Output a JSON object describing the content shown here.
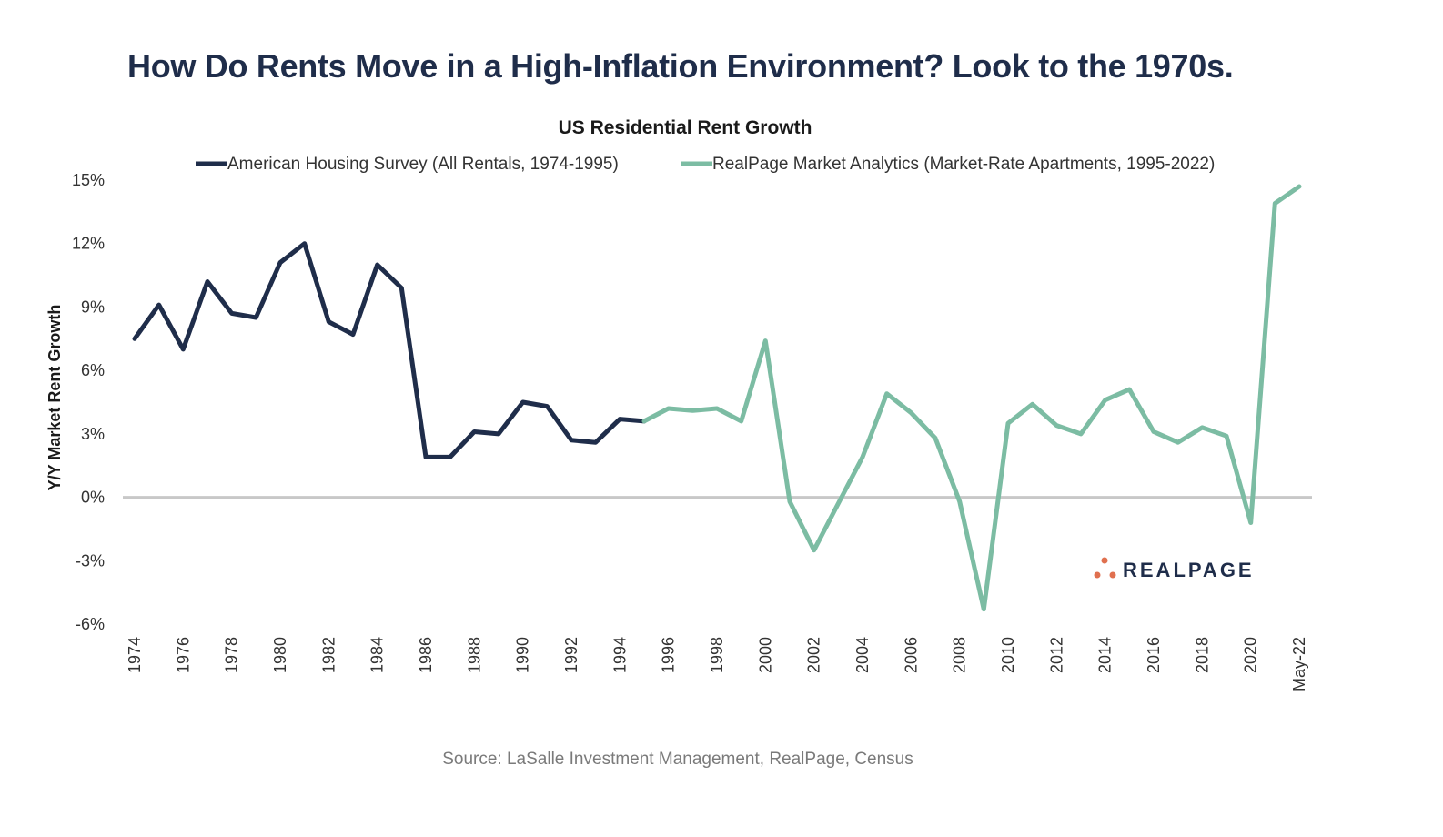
{
  "headline": "How Do Rents Move in a High-Inflation Environment? Look to the 1970s.",
  "source": "Source: LaSalle Investment Management, RealPage, Census",
  "logo": {
    "text": "REALPAGE",
    "dot_color": "#e0704f"
  },
  "chart_data": {
    "type": "line",
    "title": "US Residential Rent Growth",
    "ylabel": "Y/Y Market Rent Growth",
    "xlabel": "",
    "ylim": [
      -6,
      15
    ],
    "y_ticks": [
      15,
      12,
      9,
      6,
      3,
      0,
      -3,
      -6
    ],
    "y_tick_labels": [
      "15%",
      "12%",
      "9%",
      "6%",
      "3%",
      "0%",
      "-3%",
      "-6%"
    ],
    "x_tick_labels": [
      "1974",
      "1976",
      "1978",
      "1980",
      "1982",
      "1984",
      "1986",
      "1988",
      "1990",
      "1992",
      "1994",
      "1996",
      "1998",
      "2000",
      "2002",
      "2004",
      "2006",
      "2008",
      "2010",
      "2012",
      "2014",
      "2016",
      "2018",
      "2020",
      "May-22"
    ],
    "x_range": [
      1974,
      2022
    ],
    "legend_position": "top",
    "grid": false,
    "zero_line_color": "#c8c8c8",
    "series": [
      {
        "name": "American Housing Survey (All Rentals, 1974-1995)",
        "color": "#1f2d4a",
        "x": [
          1974,
          1975,
          1976,
          1977,
          1978,
          1979,
          1980,
          1981,
          1982,
          1983,
          1984,
          1985,
          1986,
          1987,
          1988,
          1989,
          1990,
          1991,
          1992,
          1993,
          1994,
          1995
        ],
        "values": [
          7.5,
          9.1,
          7.0,
          10.2,
          8.7,
          8.5,
          11.1,
          12.0,
          8.3,
          7.7,
          11.0,
          9.9,
          1.9,
          1.9,
          3.1,
          3.0,
          4.5,
          4.3,
          2.7,
          2.6,
          3.7,
          3.6
        ]
      },
      {
        "name": "RealPage Market Analytics (Market-Rate Apartments, 1995-2022)",
        "color": "#7cbca3",
        "x": [
          1995,
          1996,
          1997,
          1998,
          1999,
          2000,
          2001,
          2002,
          2003,
          2004,
          2005,
          2006,
          2007,
          2008,
          2009,
          2010,
          2011,
          2012,
          2013,
          2014,
          2015,
          2016,
          2017,
          2018,
          2019,
          2020,
          2021,
          2022
        ],
        "values": [
          3.6,
          4.2,
          4.1,
          4.2,
          3.6,
          7.4,
          -0.2,
          -2.5,
          -0.3,
          1.9,
          4.9,
          4.0,
          2.8,
          -0.2,
          -5.3,
          3.5,
          4.4,
          3.4,
          3.0,
          4.6,
          5.1,
          3.1,
          2.6,
          3.3,
          2.9,
          -1.2,
          13.9,
          14.7
        ]
      }
    ]
  }
}
